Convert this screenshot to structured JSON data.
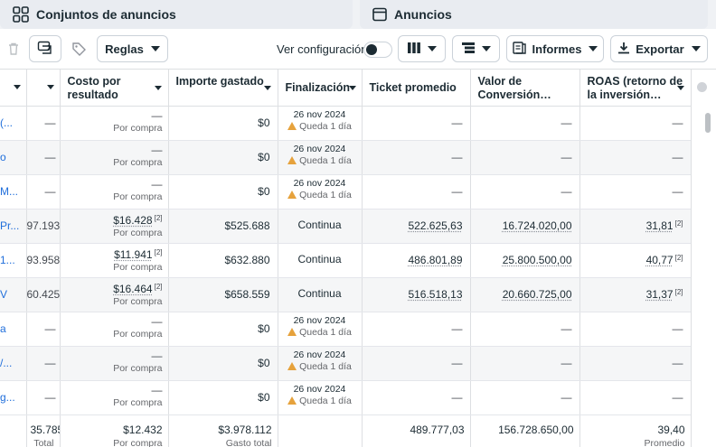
{
  "tabs": {
    "adsets_label": "Conjuntos de anuncios",
    "ads_label": "Anuncios"
  },
  "toolbar": {
    "rules_label": "Reglas",
    "view_config_label": "Ver configuración",
    "view_config_on": false,
    "reports_label": "Informes",
    "export_label": "Exportar"
  },
  "table": {
    "headers": {
      "cost_per_result": "Costo por resultado",
      "amount_spent": "Importe gastado",
      "ends": "Finalización",
      "avg_ticket": "Ticket promedio",
      "conversion_value": "Valor de Conversión…",
      "roas": "ROAS (retorno de la inversión…"
    },
    "rows": [
      {
        "name": "(...",
        "first": "—",
        "cost": "—",
        "cost_sub": "Por compra",
        "spent": "$0",
        "end_date": "26 nov 2024",
        "end_note": "Queda 1 día",
        "ticket": "—",
        "conv": "—",
        "roas": "—"
      },
      {
        "name": "o",
        "first": "—",
        "cost": "—",
        "cost_sub": "Por compra",
        "spent": "$0",
        "end_date": "26 nov 2024",
        "end_note": "Queda 1 día",
        "ticket": "—",
        "conv": "—",
        "roas": "—"
      },
      {
        "name": "M...",
        "first": "—",
        "cost": "—",
        "cost_sub": "Por compra",
        "spent": "$0",
        "end_date": "26 nov 2024",
        "end_note": "Queda 1 día",
        "ticket": "—",
        "conv": "—",
        "roas": "—"
      },
      {
        "name": "Pr...",
        "first": "97.193",
        "cost": "$16.428",
        "cost_sub": "Por compra",
        "spent": "$525.688",
        "end_date": "Continua",
        "end_note": "",
        "ticket": "522.625,63",
        "conv": "16.724.020,00",
        "roas": "31,81"
      },
      {
        "name": "1...",
        "first": "93.958",
        "cost": "$11.941",
        "cost_sub": "Por compra",
        "spent": "$632.880",
        "end_date": "Continua",
        "end_note": "",
        "ticket": "486.801,89",
        "conv": "25.800.500,00",
        "roas": "40,77"
      },
      {
        "name": "V",
        "first": "60.425",
        "cost": "$16.464",
        "cost_sub": "Por compra",
        "spent": "$658.559",
        "end_date": "Continua",
        "end_note": "",
        "ticket": "516.518,13",
        "conv": "20.660.725,00",
        "roas": "31,37"
      },
      {
        "name": "a",
        "first": "—",
        "cost": "—",
        "cost_sub": "Por compra",
        "spent": "$0",
        "end_date": "26 nov 2024",
        "end_note": "Queda 1 día",
        "ticket": "—",
        "conv": "—",
        "roas": "—"
      },
      {
        "name": "/...",
        "first": "—",
        "cost": "—",
        "cost_sub": "Por compra",
        "spent": "$0",
        "end_date": "26 nov 2024",
        "end_note": "Queda 1 día",
        "ticket": "—",
        "conv": "—",
        "roas": "—"
      },
      {
        "name": "g...",
        "first": "—",
        "cost": "—",
        "cost_sub": "Por compra",
        "spent": "$0",
        "end_date": "26 nov 2024",
        "end_note": "Queda 1 día",
        "ticket": "—",
        "conv": "—",
        "roas": "—"
      }
    ],
    "reference_mark": "[2]",
    "totals": {
      "first": "35.785",
      "first_sub": "Total",
      "cost": "$12.432",
      "cost_sub": "Por compra",
      "spent": "$3.978.112",
      "spent_sub": "Gasto total",
      "ticket": "489.777,03",
      "conv": "156.728.650,00",
      "roas": "39,40",
      "roas_sub": "Promedio"
    }
  },
  "colors": {
    "link_blue": "#216fdb",
    "warning": "#e6a23c",
    "border": "#dddfe2"
  },
  "icons": [
    "grid-icon",
    "calendar-icon",
    "trash-icon",
    "duplicate-icon",
    "tag-icon",
    "columns-icon",
    "breakdown-icon",
    "reports-icon",
    "download-icon",
    "warning-icon"
  ]
}
